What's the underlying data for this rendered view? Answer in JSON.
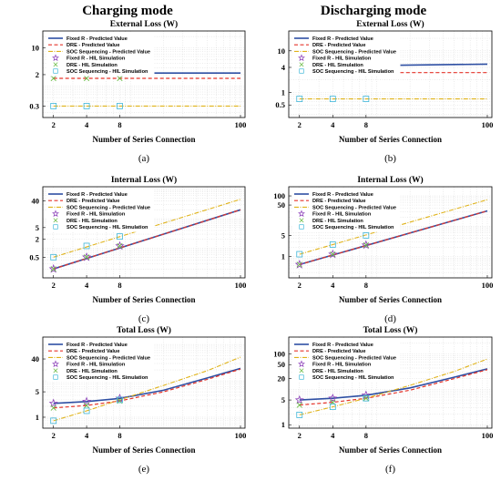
{
  "figure": {
    "column_titles": [
      "Charging mode",
      "Discharging mode"
    ]
  },
  "colors": {
    "fixed_r": "#2e4fa3",
    "dre": "#e5352b",
    "soc": "#e0b31a",
    "fixed_r_hil": "#8b3fb8",
    "dre_hil": "#6bbb46",
    "soc_hil": "#3fb6d8"
  },
  "chart_data": [
    {
      "id": "a",
      "type": "line",
      "label": "(a)",
      "title": "External Loss (W)",
      "xlabel": "Number of Series Connection",
      "x_scale": "log",
      "xticks": [
        2,
        4,
        8,
        100
      ],
      "xlim": [
        1.6,
        110
      ],
      "y_scale": "log",
      "ylim": [
        0.15,
        28
      ],
      "yticks": [
        0.3,
        2,
        10
      ],
      "series": [
        {
          "name": "Fixed R - Predicted Value",
          "x": [
            2,
            100
          ],
          "values": [
            2.2,
            2.2
          ]
        },
        {
          "name": "DRE - Predicted Value",
          "x": [
            2,
            100
          ],
          "values": [
            1.6,
            1.6
          ]
        },
        {
          "name": "SOC Sequencing - Predicted Value",
          "x": [
            2,
            100
          ],
          "values": [
            0.3,
            0.3
          ]
        },
        {
          "name": "Fixed R - HIL Simulation",
          "x": [
            2,
            4,
            8
          ],
          "values": [
            2.2,
            2.2,
            2.2
          ]
        },
        {
          "name": "DRE - HIL Simulation",
          "x": [
            2,
            4,
            8
          ],
          "values": [
            1.6,
            1.6,
            1.6
          ]
        },
        {
          "name": "SOC Sequencing - HIL Simulation",
          "x": [
            2,
            4,
            8
          ],
          "values": [
            0.3,
            0.3,
            0.3
          ]
        }
      ]
    },
    {
      "id": "b",
      "type": "line",
      "label": "(b)",
      "title": "External Loss (W)",
      "xlabel": "Number of Series Connection",
      "x_scale": "log",
      "xticks": [
        2,
        4,
        8,
        100
      ],
      "xlim": [
        1.6,
        110
      ],
      "y_scale": "log",
      "ylim": [
        0.25,
        30
      ],
      "yticks": [
        0.5,
        1,
        4,
        10
      ],
      "series": [
        {
          "name": "Fixed R - Predicted Value",
          "x": [
            2,
            8,
            100
          ],
          "values": [
            4.4,
            4.4,
            4.8
          ]
        },
        {
          "name": "DRE - Predicted Value",
          "x": [
            2,
            100
          ],
          "values": [
            3.0,
            3.0
          ]
        },
        {
          "name": "SOC Sequencing - Predicted Value",
          "x": [
            2,
            100
          ],
          "values": [
            0.7,
            0.7
          ]
        },
        {
          "name": "Fixed R - HIL Simulation",
          "x": [
            2,
            4,
            8
          ],
          "values": [
            4.4,
            4.4,
            4.4
          ]
        },
        {
          "name": "DRE - HIL Simulation",
          "x": [
            2,
            4,
            8
          ],
          "values": [
            3.0,
            3.0,
            3.0
          ]
        },
        {
          "name": "SOC Sequencing - HIL Simulation",
          "x": [
            2,
            4,
            8
          ],
          "values": [
            0.7,
            0.7,
            0.7
          ]
        }
      ]
    },
    {
      "id": "c",
      "type": "line",
      "label": "(c)",
      "title": "Internal Loss (W)",
      "xlabel": "Number of Series Connection",
      "x_scale": "log",
      "xticks": [
        2,
        4,
        8,
        100
      ],
      "xlim": [
        1.6,
        110
      ],
      "y_scale": "log",
      "ylim": [
        0.1,
        120
      ],
      "yticks": [
        0.5,
        2,
        5,
        40
      ],
      "series": [
        {
          "name": "Fixed R - Predicted Value",
          "x": [
            2,
            100
          ],
          "values": [
            0.2,
            20
          ]
        },
        {
          "name": "DRE - Predicted Value",
          "x": [
            2,
            100
          ],
          "values": [
            0.2,
            20
          ]
        },
        {
          "name": "SOC Sequencing - Predicted Value",
          "x": [
            2,
            100
          ],
          "values": [
            0.5,
            45
          ]
        },
        {
          "name": "Fixed R - HIL Simulation",
          "x": [
            2,
            4,
            8
          ],
          "values": [
            0.2,
            0.5,
            1.2
          ]
        },
        {
          "name": "DRE - HIL Simulation",
          "x": [
            2,
            4,
            8
          ],
          "values": [
            0.2,
            0.5,
            1.2
          ]
        },
        {
          "name": "SOC Sequencing - HIL Simulation",
          "x": [
            2,
            4,
            8
          ],
          "values": [
            0.5,
            1.2,
            2.5
          ]
        }
      ]
    },
    {
      "id": "d",
      "type": "line",
      "label": "(d)",
      "title": "Internal Loss (W)",
      "xlabel": "Number of Series Connection",
      "x_scale": "log",
      "xticks": [
        2,
        4,
        8,
        100
      ],
      "xlim": [
        1.6,
        110
      ],
      "y_scale": "log",
      "ylim": [
        0.2,
        200
      ],
      "yticks": [
        1,
        5,
        50,
        100
      ],
      "series": [
        {
          "name": "Fixed R - Predicted Value",
          "x": [
            2,
            100
          ],
          "values": [
            0.55,
            32
          ]
        },
        {
          "name": "DRE - Predicted Value",
          "x": [
            2,
            100
          ],
          "values": [
            0.55,
            32
          ]
        },
        {
          "name": "SOC Sequencing - Predicted Value",
          "x": [
            2,
            100
          ],
          "values": [
            1.2,
            75
          ]
        },
        {
          "name": "Fixed R - HIL Simulation",
          "x": [
            2,
            4,
            8
          ],
          "values": [
            0.55,
            1.2,
            2.4
          ]
        },
        {
          "name": "DRE - HIL Simulation",
          "x": [
            2,
            4,
            8
          ],
          "values": [
            0.55,
            1.2,
            2.4
          ]
        },
        {
          "name": "SOC Sequencing - HIL Simulation",
          "x": [
            2,
            4,
            8
          ],
          "values": [
            1.2,
            2.5,
            5
          ]
        }
      ]
    },
    {
      "id": "e",
      "type": "line",
      "label": "(e)",
      "title": "Total Loss (W)",
      "xlabel": "Number of Series Connection",
      "x_scale": "log",
      "xticks": [
        2,
        4,
        8,
        100
      ],
      "xlim": [
        1.6,
        110
      ],
      "y_scale": "log",
      "ylim": [
        0.5,
        160
      ],
      "yticks": [
        1,
        5,
        40
      ],
      "series": [
        {
          "name": "Fixed R - Predicted Value",
          "x": [
            2,
            4,
            8,
            20,
            50,
            100
          ],
          "values": [
            2.4,
            2.7,
            3.3,
            5.5,
            12,
            22
          ]
        },
        {
          "name": "DRE - Predicted Value",
          "x": [
            2,
            4,
            8,
            20,
            50,
            100
          ],
          "values": [
            1.8,
            2.1,
            2.8,
            5,
            11,
            21
          ]
        },
        {
          "name": "SOC Sequencing - Predicted Value",
          "x": [
            2,
            4,
            8,
            20,
            50,
            100
          ],
          "values": [
            0.8,
            1.5,
            3,
            7.5,
            19,
            45
          ]
        },
        {
          "name": "Fixed R - HIL Simulation",
          "x": [
            2,
            4,
            8
          ],
          "values": [
            2.4,
            2.7,
            3.3
          ]
        },
        {
          "name": "DRE - HIL Simulation",
          "x": [
            2,
            4,
            8
          ],
          "values": [
            1.8,
            2.1,
            2.8
          ]
        },
        {
          "name": "SOC Sequencing - HIL Simulation",
          "x": [
            2,
            4,
            8
          ],
          "values": [
            0.8,
            1.5,
            3
          ]
        }
      ]
    },
    {
      "id": "f",
      "type": "line",
      "label": "(f)",
      "title": "Total Loss (W)",
      "xlabel": "Number of Series Connection",
      "x_scale": "log",
      "xticks": [
        2,
        4,
        8,
        100
      ],
      "xlim": [
        1.6,
        110
      ],
      "y_scale": "log",
      "ylim": [
        0.8,
        300
      ],
      "yticks": [
        1,
        5,
        20,
        50,
        100
      ],
      "series": [
        {
          "name": "Fixed R - Predicted Value",
          "x": [
            2,
            4,
            8,
            20,
            50,
            100
          ],
          "values": [
            5,
            5.6,
            6.8,
            11,
            22,
            38
          ]
        },
        {
          "name": "DRE - Predicted Value",
          "x": [
            2,
            4,
            8,
            20,
            50,
            100
          ],
          "values": [
            3.6,
            4.3,
            5.6,
            9.5,
            20,
            36
          ]
        },
        {
          "name": "SOC Sequencing - Predicted Value",
          "x": [
            2,
            4,
            8,
            20,
            50,
            100
          ],
          "values": [
            1.9,
            3.2,
            5.6,
            13,
            32,
            72
          ]
        },
        {
          "name": "Fixed R - HIL Simulation",
          "x": [
            2,
            4,
            8
          ],
          "values": [
            5,
            5.6,
            6.8
          ]
        },
        {
          "name": "DRE - HIL Simulation",
          "x": [
            2,
            4,
            8
          ],
          "values": [
            3.6,
            4.3,
            5.6
          ]
        },
        {
          "name": "SOC Sequencing - HIL Simulation",
          "x": [
            2,
            4,
            8
          ],
          "values": [
            1.9,
            3.2,
            5.6
          ]
        }
      ]
    }
  ]
}
